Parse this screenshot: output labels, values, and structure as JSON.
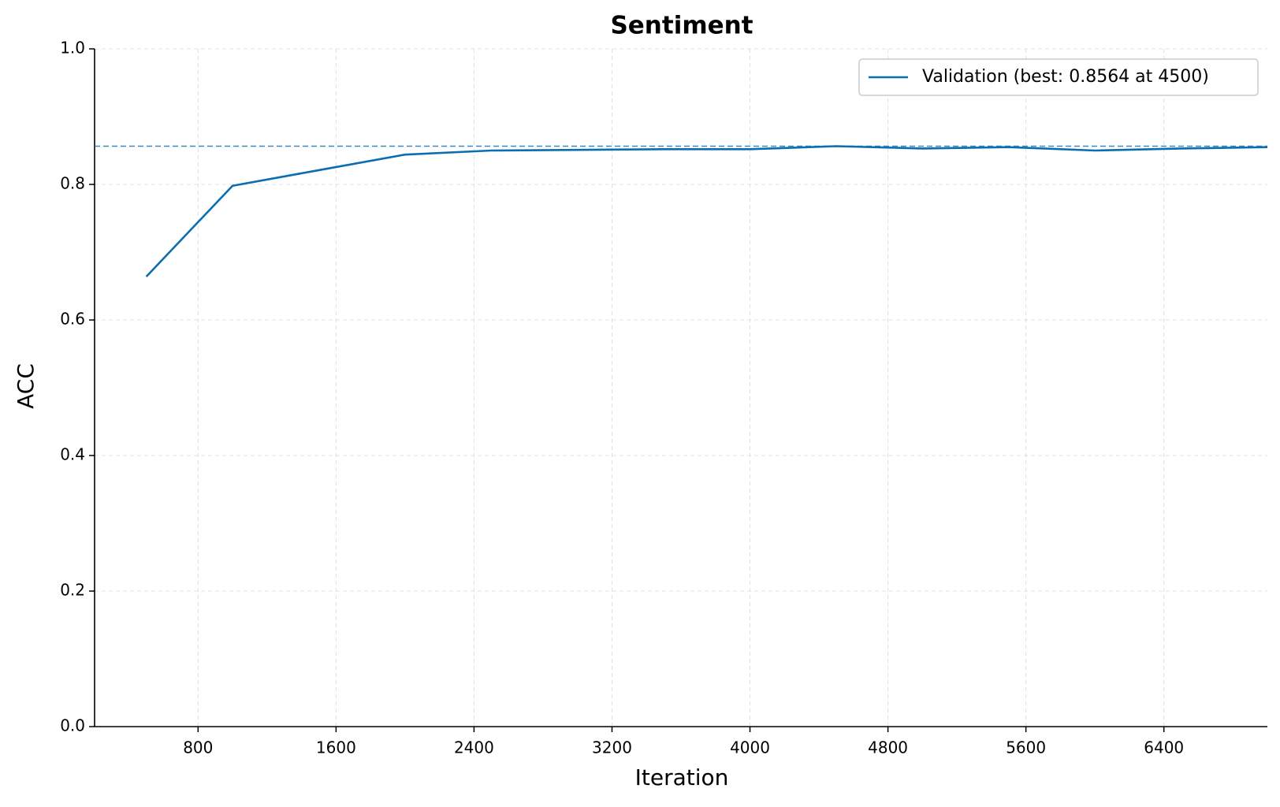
{
  "chart_data": {
    "type": "line",
    "title": "Sentiment",
    "xlabel": "Iteration",
    "ylabel": "ACC",
    "x": [
      500,
      1000,
      1500,
      2000,
      2500,
      3000,
      3500,
      4000,
      4500,
      5000,
      5500,
      6000,
      6500,
      7000
    ],
    "series": [
      {
        "name": "Validation (best: 0.8564 at 4500)",
        "color": "#0a6eb0",
        "values": [
          0.664,
          0.798,
          0.821,
          0.844,
          0.85,
          0.851,
          0.852,
          0.852,
          0.8564,
          0.853,
          0.855,
          0.85,
          0.853,
          0.855
        ]
      }
    ],
    "reference_line": 0.8564,
    "xlim": [
      200,
      7000
    ],
    "xticks": [
      800,
      1600,
      2400,
      3200,
      4000,
      4800,
      5600,
      6400
    ],
    "ylim": [
      0,
      1
    ],
    "yticks": [
      {
        "value": 0,
        "label": "0.0"
      },
      0.2,
      0.4,
      0.6,
      0.8,
      {
        "value": 1,
        "label": "1.0"
      }
    ],
    "grid": true,
    "legend": "upper right"
  }
}
